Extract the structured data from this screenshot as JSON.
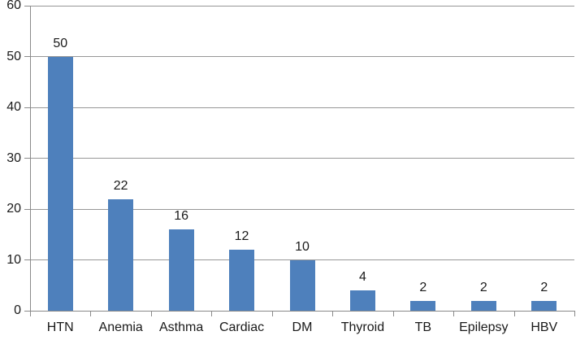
{
  "chart_data": {
    "type": "bar",
    "categories": [
      "HTN",
      "Anemia",
      "Asthma",
      "Cardiac",
      "DM",
      "Thyroid",
      "TB",
      "Epilepsy",
      "HBV"
    ],
    "values": [
      50,
      22,
      16,
      12,
      10,
      4,
      2,
      2,
      2
    ],
    "data_labels": [
      "50",
      "22",
      "16",
      "12",
      "10",
      "4",
      "2",
      "2",
      "2"
    ],
    "title": "",
    "xlabel": "",
    "ylabel": "",
    "ylim": [
      0,
      60
    ],
    "ytick_step": 10,
    "ytick_labels": [
      "0",
      "10",
      "20",
      "30",
      "40",
      "50",
      "60"
    ],
    "grid": true,
    "legend_position": "none",
    "colors": {
      "bar_fill": "#4E80BC",
      "gridline": "#979797",
      "axis": "#8A8A8A",
      "text": "#1A1A1A",
      "background": "#FFFFFF"
    }
  }
}
